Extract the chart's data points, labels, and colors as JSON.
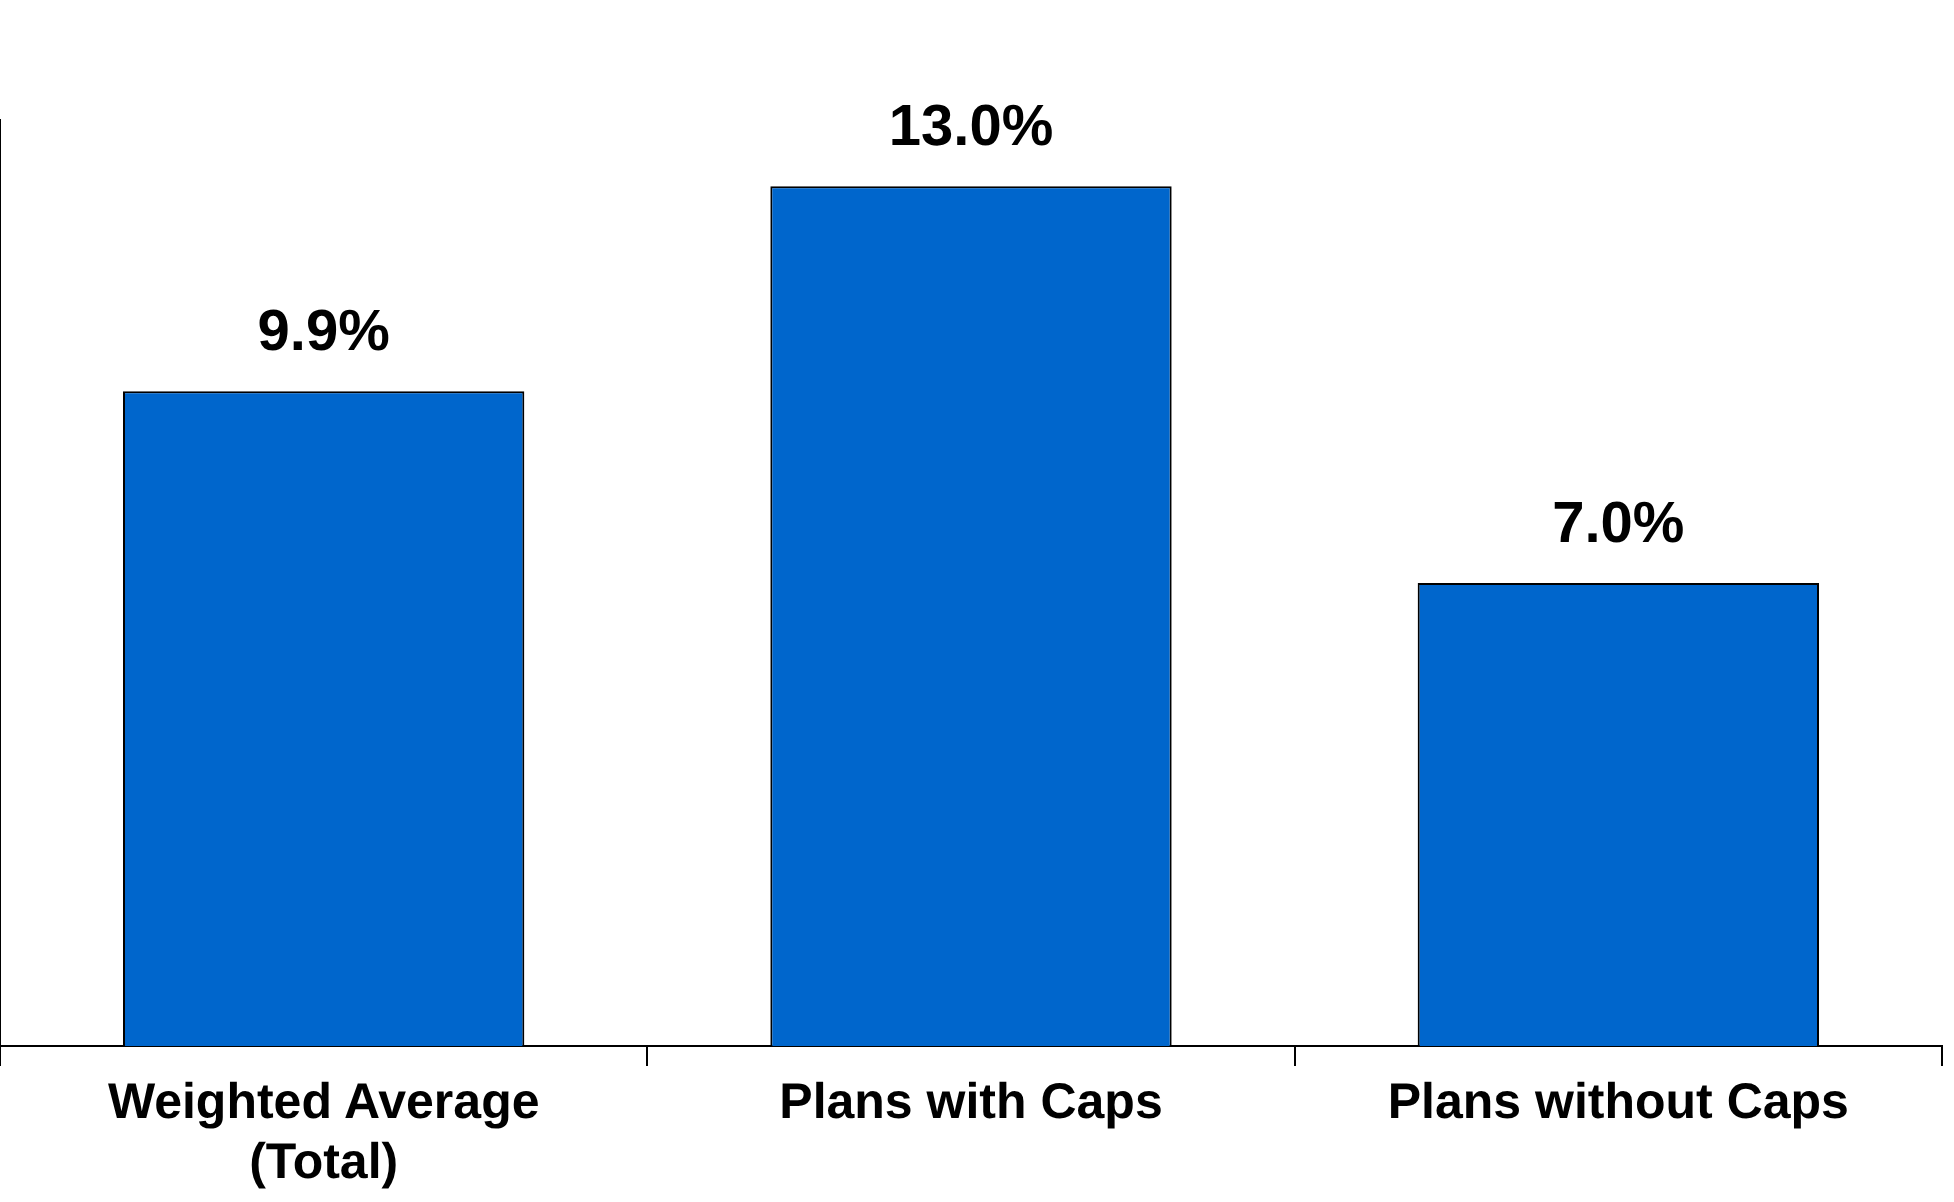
{
  "chart_data": {
    "type": "bar",
    "categories": [
      "Weighted Average (Total)",
      "Plans with Caps",
      "Plans without Caps"
    ],
    "values": [
      9.9,
      13.0,
      7.0
    ],
    "color": "#0066cc",
    "value_labels": [
      "9.9%",
      "13.0%",
      "7.0%"
    ],
    "grid": false,
    "legend": false
  }
}
